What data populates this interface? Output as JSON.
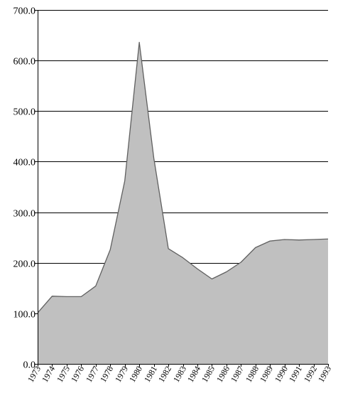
{
  "chart_data": {
    "type": "area",
    "title": "",
    "xlabel": "",
    "ylabel": "",
    "x": [
      "1973",
      "1974",
      "1975",
      "1976",
      "1977",
      "1978",
      "1979",
      "1980",
      "1981",
      "1982",
      "1983",
      "1984",
      "1985",
      "1986",
      "1987",
      "1988",
      "1989",
      "1990",
      "1991",
      "1992",
      "1993"
    ],
    "values": [
      101,
      134,
      133,
      133,
      154,
      226,
      362,
      636,
      407,
      228,
      210,
      188,
      168,
      182,
      201,
      230,
      243,
      246,
      245,
      246,
      247
    ],
    "ylim": [
      0,
      700
    ],
    "yticks": [
      0,
      100,
      200,
      300,
      400,
      500,
      600,
      700
    ],
    "ytick_labels": [
      "0.0",
      "100.0",
      "200.0",
      "300.0",
      "400.0",
      "500.0",
      "600.0",
      "700.0"
    ],
    "grid": true,
    "legend": "none",
    "colors": {
      "fill": "#c0c0c0",
      "line": "#606060",
      "grid": "#000000",
      "axis": "#000000"
    }
  }
}
